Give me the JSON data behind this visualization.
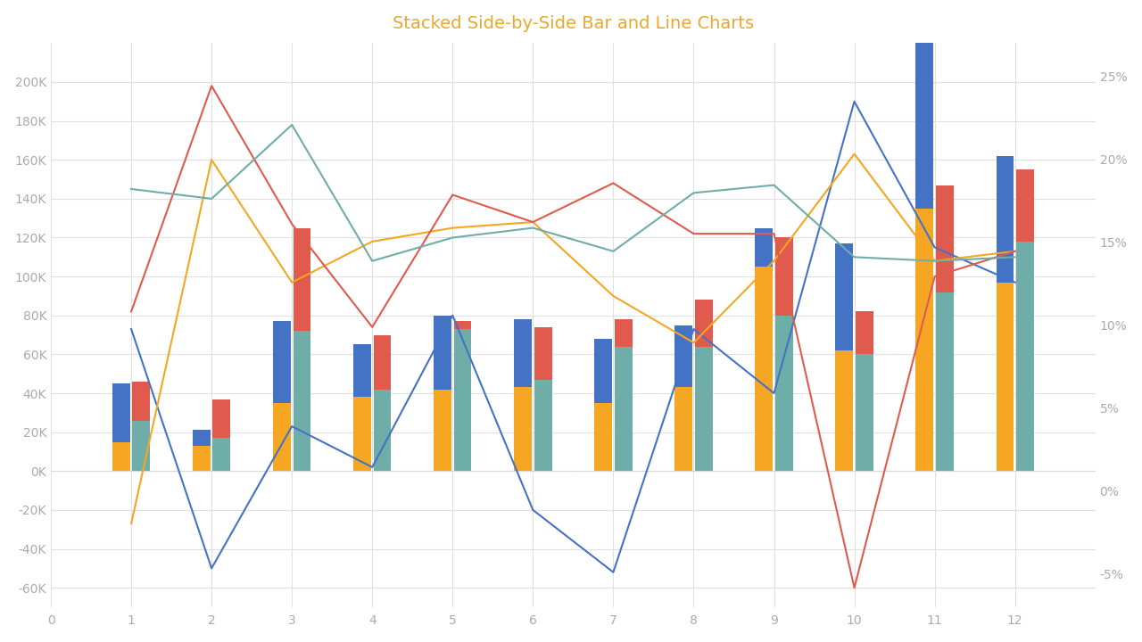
{
  "title": "Stacked Side-by-Side Bar and Line Charts",
  "title_color": "#E8A830",
  "background_color": "#ffffff",
  "x_ticks": [
    0,
    1,
    2,
    3,
    4,
    5,
    6,
    7,
    8,
    9,
    10,
    11,
    12
  ],
  "categories": [
    1,
    2,
    3,
    4,
    5,
    6,
    7,
    8,
    9,
    10,
    11,
    12
  ],
  "bar_width": 0.22,
  "bar_gap": 0.25,
  "bar1_blue": [
    30000,
    8000,
    42000,
    27000,
    38000,
    35000,
    33000,
    32000,
    20000,
    55000,
    90000,
    65000
  ],
  "bar1_orange": [
    15000,
    13000,
    35000,
    38000,
    42000,
    43000,
    35000,
    43000,
    105000,
    62000,
    135000,
    97000
  ],
  "bar2_teal": [
    26000,
    17000,
    72000,
    42000,
    73000,
    47000,
    64000,
    64000,
    80000,
    60000,
    92000,
    118000
  ],
  "bar2_red_top": [
    20000,
    20000,
    53000,
    28000,
    4000,
    27000,
    14000,
    24000,
    40000,
    22000,
    55000,
    37000
  ],
  "line1_blue": [
    73000,
    -50000,
    23000,
    2000,
    80000,
    -20000,
    -52000,
    73000,
    40000,
    190000,
    115000,
    97000
  ],
  "line2_orange": [
    -27000,
    160000,
    97000,
    118000,
    125000,
    128000,
    90000,
    66000,
    108000,
    163000,
    108000,
    113000
  ],
  "line3_red": [
    82000,
    198000,
    127000,
    74000,
    142000,
    128000,
    148000,
    122000,
    122000,
    -60000,
    100000,
    113000
  ],
  "line4_teal": [
    145000,
    140000,
    178000,
    108000,
    120000,
    125000,
    113000,
    143000,
    147000,
    110000,
    108000,
    110000
  ],
  "bar_color_blue": "#4472C4",
  "bar_color_orange": "#F5A623",
  "bar_color_red": "#E05A4E",
  "bar_color_teal": "#6FADA8",
  "line_color_blue": "#4472C4",
  "line_color_orange": "#F5A623",
  "line_color_red": "#E05A4E",
  "line_color_teal": "#6FADA8",
  "ylim_left": [
    -70000,
    220000
  ],
  "ylim_right": [
    -0.07,
    0.27
  ],
  "yticks_left": [
    -60000,
    -40000,
    -20000,
    0,
    20000,
    40000,
    60000,
    80000,
    100000,
    120000,
    140000,
    160000,
    180000,
    200000
  ],
  "yticks_right": [
    -0.05,
    0.0,
    0.05,
    0.1,
    0.15,
    0.2,
    0.25
  ],
  "xlim": [
    0,
    13
  ]
}
